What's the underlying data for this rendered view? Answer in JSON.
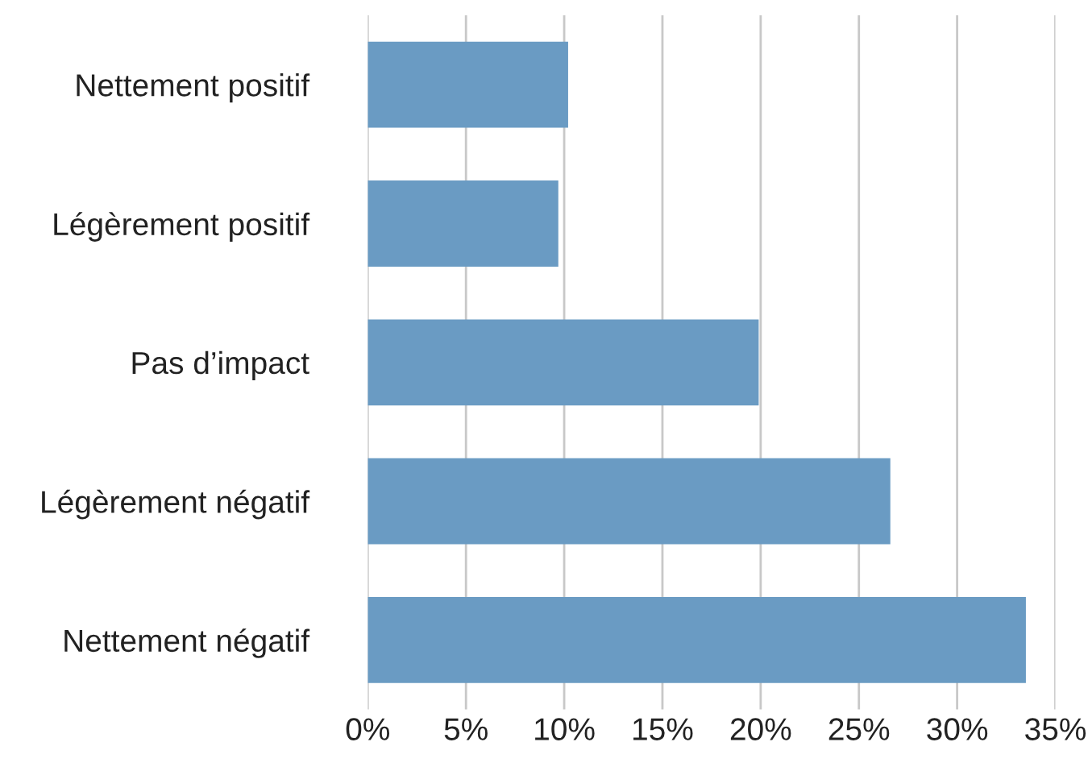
{
  "chart_data": {
    "type": "bar",
    "orientation": "horizontal",
    "categories": [
      "Nettement positif",
      "Légèrement positif",
      "Pas d’impact",
      "Légèrement négatif",
      "Nettement négatif"
    ],
    "values": [
      10.2,
      9.7,
      19.9,
      26.6,
      33.5
    ],
    "color": "#6a9bc3",
    "xlim": [
      0,
      35
    ],
    "xticks": [
      {
        "value": 0,
        "label": "0%"
      },
      {
        "value": 5,
        "label": "5%"
      },
      {
        "value": 10,
        "label": "10%"
      },
      {
        "value": 15,
        "label": "15%"
      },
      {
        "value": 20,
        "label": "20%"
      },
      {
        "value": 25,
        "label": "25%"
      },
      {
        "value": 30,
        "label": "30%"
      },
      {
        "value": 35,
        "label": "35%"
      }
    ],
    "grid": "x",
    "legend": false
  }
}
